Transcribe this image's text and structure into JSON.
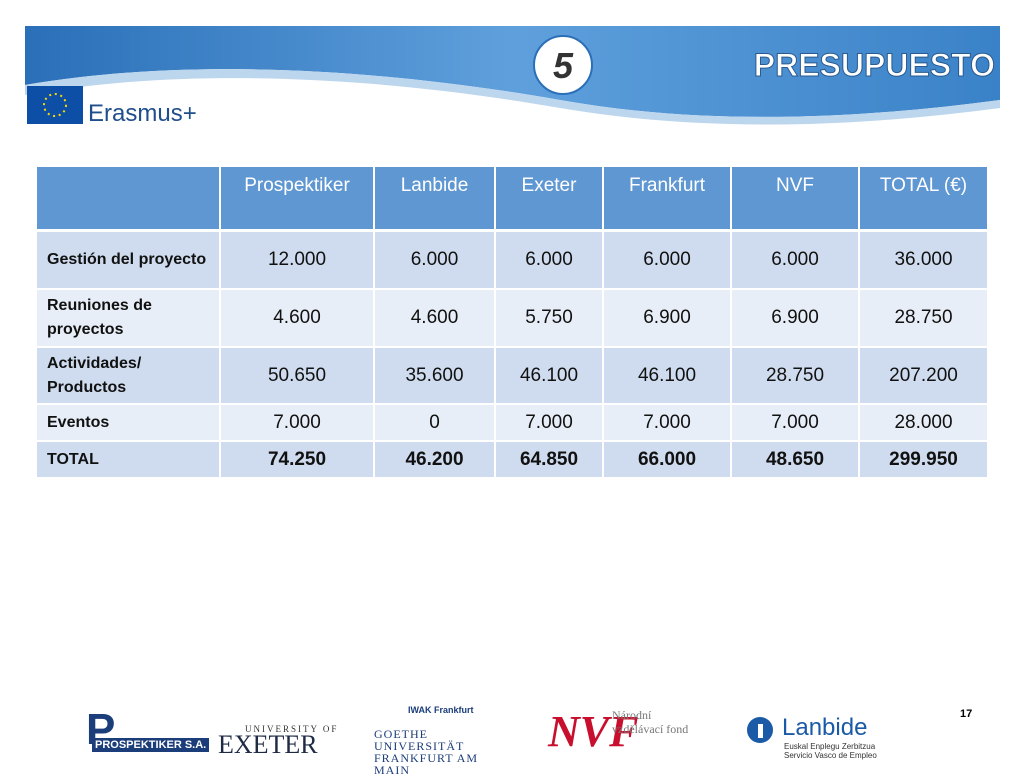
{
  "header": {
    "number": "5",
    "title": "PRESUPUESTO",
    "logo": "Erasmus+"
  },
  "table": {
    "columns": [
      "Prospektiker",
      "Lanbide",
      "Exeter",
      "Frankfurt",
      "NVF",
      "TOTAL (€)"
    ],
    "rows": [
      {
        "label": "Gestión del proyecto",
        "values": [
          "12.000",
          "6.000",
          "6.000",
          "6.000",
          "6.000",
          "36.000"
        ]
      },
      {
        "label": "Reuniones de proyectos",
        "values": [
          "4.600",
          "4.600",
          "5.750",
          "6.900",
          "6.900",
          "28.750"
        ]
      },
      {
        "label": "Actividades/ Productos",
        "values": [
          "50.650",
          "35.600",
          "46.100",
          "46.100",
          "28.750",
          "207.200"
        ]
      },
      {
        "label": "Eventos",
        "values": [
          "7.000",
          "0",
          "7.000",
          "7.000",
          "7.000",
          "28.000"
        ]
      },
      {
        "label": "TOTAL",
        "values": [
          "74.250",
          "46.200",
          "64.850",
          "66.000",
          "48.650",
          "299.950"
        ]
      }
    ]
  },
  "footer": {
    "page": "17",
    "logos": [
      "PROSPEKTIKER S.A.",
      "UNIVERSITY OF",
      "EXETER",
      "IWAK Frankfurt",
      "GOETHE UNIVERSITÄT FRANKFURT AM MAIN",
      "NVF",
      "Národní vzdělávací fond",
      "Lanbide",
      "Euskal Enplegu Zerbitzua Servicio Vasco de Empleo"
    ]
  }
}
